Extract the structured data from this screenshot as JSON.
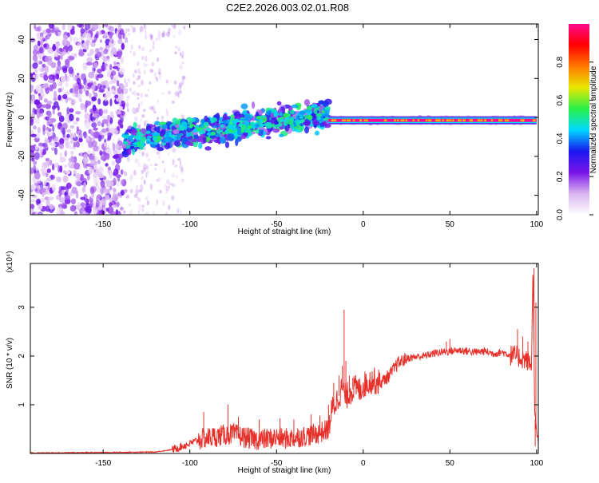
{
  "title": "C2E2.2026.003.02.01.R08",
  "chart_data": [
    {
      "type": "heatmap",
      "xlabel": "Height of straight line (km)",
      "ylabel": "Frequency (Hz)",
      "xlim": [
        -192,
        101
      ],
      "ylim": [
        -50,
        48
      ],
      "x_ticks": [
        -150,
        -100,
        -50,
        0,
        50,
        100
      ],
      "x_tick_labels": [
        "-150",
        "-100",
        "-50",
        "0",
        "50",
        "100"
      ],
      "y_ticks": [
        -40,
        -20,
        0,
        20,
        40
      ],
      "y_tick_labels": [
        "-40",
        "-20",
        "0",
        "20",
        "40"
      ],
      "colorbar": {
        "label": "Normalized spectral amplitude",
        "range": [
          0,
          1
        ],
        "ticks": [
          0.0,
          0.2,
          0.4,
          0.6,
          0.8
        ],
        "tick_labels": [
          "0.0",
          "0.2",
          "0.4",
          "0.6",
          "0.8"
        ],
        "colors": [
          "#ffffff",
          "#d8b4f0",
          "#7a14e8",
          "#1a18f0",
          "#00d8ff",
          "#2af04a",
          "#e8e800",
          "#ff7a00",
          "#ff0000",
          "#ff0a8c"
        ]
      },
      "regions": [
        {
          "x_range": [
            -192,
            -138
          ],
          "freq_range": [
            -50,
            48
          ],
          "amplitude": 0.15,
          "description": "broad scattered noise"
        },
        {
          "x_range": [
            -138,
            -20
          ],
          "freq_start": -12,
          "freq_end": 2,
          "amplitude": 0.35,
          "description": "drifting signal band"
        },
        {
          "x_range": [
            -20,
            100
          ],
          "freq_center": -1.5,
          "amplitude": 1.0,
          "description": "steady carrier"
        }
      ]
    },
    {
      "type": "line",
      "xlabel": "Height of straight line (km)",
      "ylabel": "SNR (10 * v/v)",
      "yscale_note": "(x10⁴)",
      "xlim": [
        -192,
        101
      ],
      "ylim": [
        0,
        3.9
      ],
      "x_ticks": [
        -150,
        -100,
        -50,
        0,
        50,
        100
      ],
      "x_tick_labels": [
        "-150",
        "-100",
        "-50",
        "0",
        "50",
        "100"
      ],
      "y_ticks": [
        1,
        2,
        3
      ],
      "y_tick_labels": [
        "1",
        "2",
        "3"
      ],
      "color": "#e8302a",
      "series": [
        {
          "x": [
            -192,
            -150,
            -120,
            -110,
            -100,
            -95,
            -90,
            -85,
            -80,
            -75,
            -70,
            -65,
            -60,
            -55,
            -50,
            -45,
            -40,
            -35,
            -30,
            -25,
            -20,
            -18,
            -15,
            -12,
            -10,
            -8,
            -5,
            -2,
            0,
            5,
            10,
            15,
            20,
            25,
            30,
            35,
            40,
            45,
            50,
            55,
            60,
            65,
            70,
            75,
            80,
            85,
            88,
            92,
            95,
            97,
            98,
            99,
            100
          ],
          "y": [
            0.01,
            0.02,
            0.03,
            0.08,
            0.2,
            0.28,
            0.32,
            0.35,
            0.38,
            0.4,
            0.35,
            0.3,
            0.28,
            0.3,
            0.33,
            0.3,
            0.32,
            0.35,
            0.38,
            0.42,
            0.5,
            0.9,
            1.1,
            1.35,
            1.15,
            1.25,
            1.35,
            1.3,
            1.4,
            1.5,
            1.45,
            1.6,
            1.85,
            1.95,
            1.98,
            2.0,
            2.05,
            2.08,
            2.1,
            2.12,
            2.1,
            2.08,
            2.1,
            2.05,
            2.08,
            2.02,
            2.0,
            1.95,
            1.9,
            1.8,
            3.8,
            0.8,
            0.3
          ],
          "spikes": [
            {
              "x": -92,
              "y": 0.85
            },
            {
              "x": -78,
              "y": 1.0
            },
            {
              "x": -72,
              "y": 0.75
            },
            {
              "x": -60,
              "y": 0.7
            },
            {
              "x": -48,
              "y": 0.72
            },
            {
              "x": -40,
              "y": 0.7
            },
            {
              "x": -30,
              "y": 0.8
            },
            {
              "x": -25,
              "y": 0.78
            },
            {
              "x": -20,
              "y": 1.0
            },
            {
              "x": -17,
              "y": 1.45
            },
            {
              "x": -14,
              "y": 1.6
            },
            {
              "x": -12,
              "y": 1.8
            },
            {
              "x": -11,
              "y": 2.95
            },
            {
              "x": -10,
              "y": 1.9
            },
            {
              "x": -8,
              "y": 1.6
            },
            {
              "x": -6,
              "y": 1.55
            },
            {
              "x": 5,
              "y": 1.4
            },
            {
              "x": 8,
              "y": 1.55
            },
            {
              "x": 48,
              "y": 2.3
            },
            {
              "x": 50,
              "y": 2.35
            },
            {
              "x": 86,
              "y": 2.1
            },
            {
              "x": 89,
              "y": 2.55
            },
            {
              "x": 92,
              "y": 2.4
            },
            {
              "x": 95,
              "y": 2.3
            },
            {
              "x": 98.5,
              "y": 3.8
            },
            {
              "x": 99.2,
              "y": 0.15
            },
            {
              "x": 99.6,
              "y": 3.1
            }
          ]
        }
      ]
    }
  ]
}
